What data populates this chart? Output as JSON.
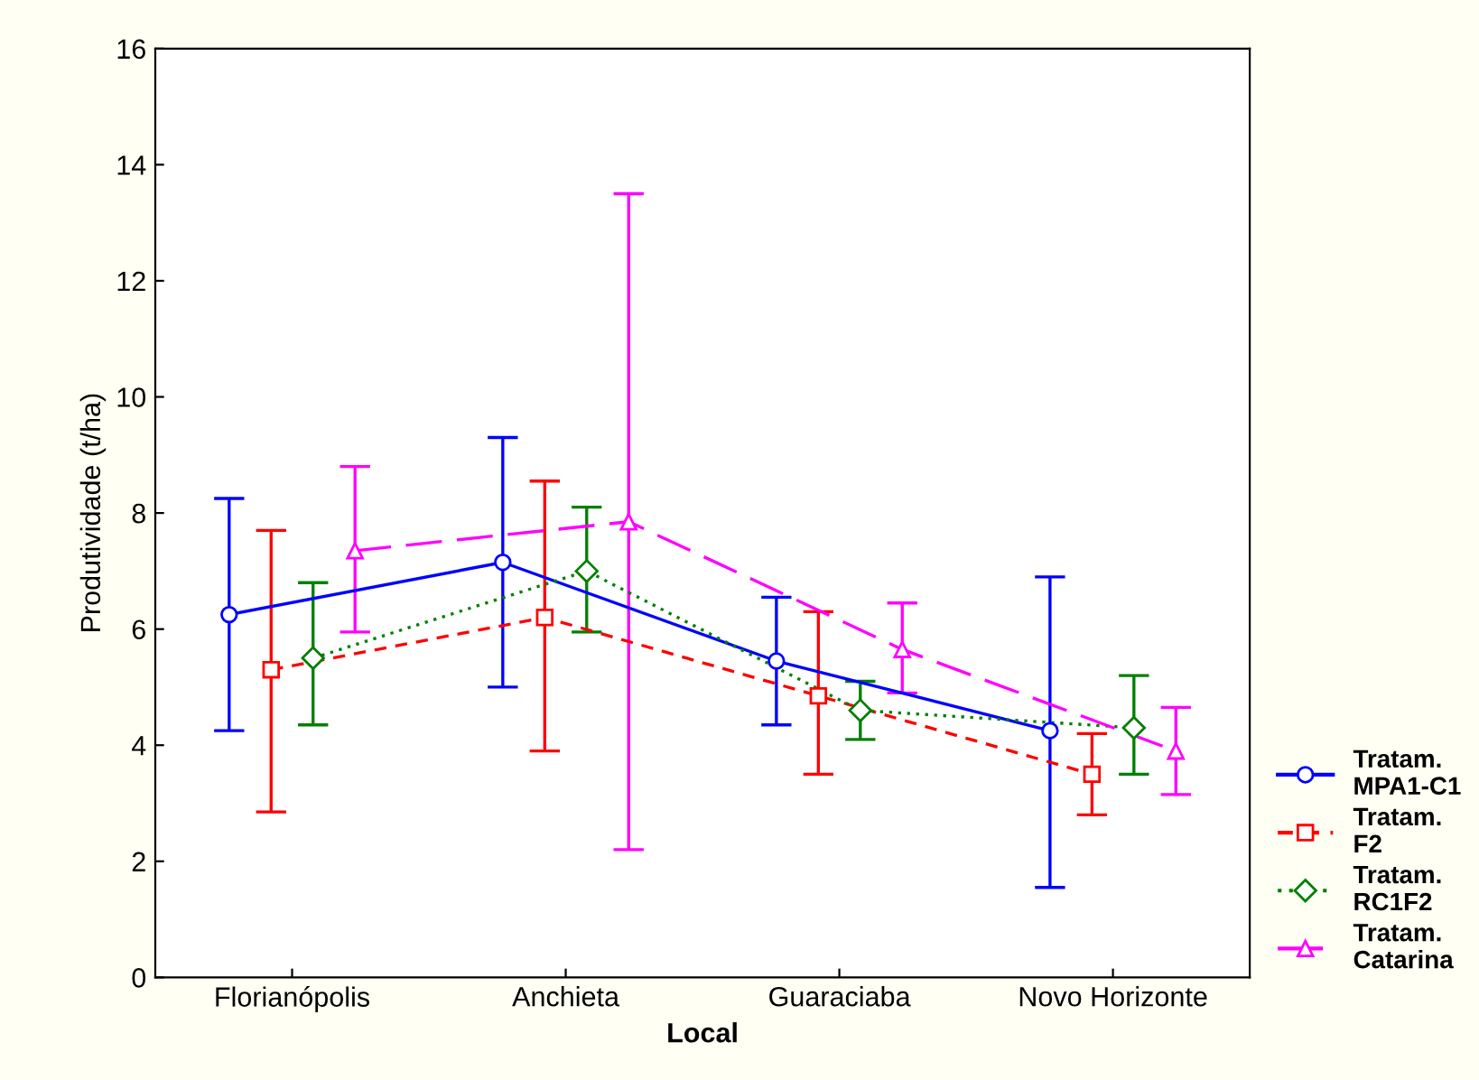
{
  "chart_data": {
    "type": "line",
    "xlabel": "Local",
    "ylabel": "Produtividade (t/ha)",
    "categories": [
      "Florianópolis",
      "Anchieta",
      "Guaraciaba",
      "Novo Horizonte"
    ],
    "ylim": [
      0,
      16
    ],
    "yticks": [
      0,
      2,
      4,
      6,
      8,
      10,
      12,
      14,
      16
    ],
    "grid": false,
    "legend": "right",
    "series": [
      {
        "name": "Tratam.\nMPA1-C1",
        "color": "#0000ff",
        "marker": "circle",
        "line_style": "solid",
        "values": [
          6.25,
          7.15,
          5.45,
          4.25
        ],
        "errors": [
          [
            4.25,
            8.25
          ],
          [
            5.0,
            9.3
          ],
          [
            4.35,
            6.55
          ],
          [
            1.55,
            6.9
          ]
        ]
      },
      {
        "name": "Tratam.\nF2",
        "color": "#ff0000",
        "marker": "square",
        "line_style": "dashed",
        "values": [
          5.3,
          6.2,
          4.85,
          3.5
        ],
        "errors": [
          [
            2.85,
            7.7
          ],
          [
            3.9,
            8.55
          ],
          [
            3.5,
            6.3
          ],
          [
            2.8,
            4.2
          ]
        ]
      },
      {
        "name": "Tratam.\nRC1F2",
        "color": "#008000",
        "marker": "diamond",
        "line_style": "dotted",
        "values": [
          5.5,
          7.0,
          4.6,
          4.3
        ],
        "errors": [
          [
            4.35,
            6.8
          ],
          [
            5.95,
            8.1
          ],
          [
            4.1,
            5.1
          ],
          [
            3.5,
            5.2
          ]
        ]
      },
      {
        "name": "Tratam.\nCatarina",
        "color": "#ff00ff",
        "marker": "triangle",
        "line_style": "longdash",
        "values": [
          7.35,
          7.85,
          5.65,
          3.9
        ],
        "errors": [
          [
            5.95,
            8.8
          ],
          [
            2.2,
            13.5
          ],
          [
            4.9,
            6.45
          ],
          [
            3.15,
            4.65
          ]
        ]
      }
    ]
  }
}
